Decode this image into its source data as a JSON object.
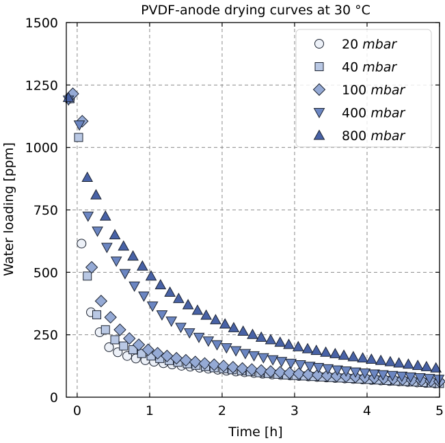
{
  "colors": {
    "20": "#edf1f8",
    "40": "#b9c8e4",
    "100": "#95aad5",
    "400": "#6b86c2",
    "800": "#4862a6",
    "edge": "#1b2230",
    "grid": "#8a8a8a"
  },
  "chart_data": {
    "type": "scatter",
    "title": "PVDF-anode drying curves at 30 °C",
    "xlabel": "Time [h]",
    "ylabel": "Water loading [ppm]",
    "xlim": [
      -0.15,
      5
    ],
    "ylim": [
      0,
      1500
    ],
    "xticks": [
      0,
      1,
      2,
      3,
      4,
      5
    ],
    "yticks": [
      0,
      250,
      500,
      750,
      1000,
      1250,
      1500
    ],
    "xtick_labels": [
      "0",
      "1",
      "2",
      "3",
      "4",
      "5"
    ],
    "ytick_labels": [
      "0",
      "250",
      "500",
      "750",
      "1000",
      "1250",
      "1500"
    ],
    "grid": true,
    "legend_position": "top-right",
    "series": [
      {
        "name": "20 mbar",
        "num": "20",
        "unit": "mbar",
        "marker": "circle",
        "color": "#edf1f8",
        "x": [
          -0.1,
          0.06,
          0.19,
          0.31,
          0.44,
          0.56,
          0.69,
          0.81,
          0.94,
          1.06,
          1.19,
          1.31,
          1.44,
          1.56,
          1.69,
          1.81,
          1.94,
          2.06,
          2.19,
          2.31,
          2.44,
          2.56,
          2.69,
          2.81,
          2.94,
          3.06,
          3.19,
          3.31,
          3.44,
          3.56,
          3.69,
          3.81,
          3.94,
          4.06,
          4.19,
          4.31,
          4.44,
          4.56,
          4.69,
          4.81,
          4.94
        ],
        "y": [
          1195,
          615,
          340,
          260,
          200,
          180,
          165,
          155,
          148,
          142,
          136,
          131,
          126,
          122,
          118,
          114,
          110,
          106,
          103,
          100,
          97,
          94,
          91,
          89,
          87,
          85,
          83,
          81,
          79,
          77,
          75,
          73,
          71,
          69,
          67,
          65,
          63,
          61,
          59,
          57,
          55
        ]
      },
      {
        "name": "40 mbar",
        "num": "40",
        "unit": "mbar",
        "marker": "square",
        "color": "#b9c8e4",
        "x": [
          -0.1,
          0.02,
          0.14,
          0.27,
          0.39,
          0.52,
          0.64,
          0.77,
          0.89,
          1.02,
          1.14,
          1.27,
          1.39,
          1.52,
          1.64,
          1.77,
          1.89,
          2.02,
          2.14,
          2.27,
          2.39,
          2.52,
          2.64,
          2.77,
          2.89,
          3.02,
          3.14,
          3.27,
          3.39,
          3.52,
          3.64,
          3.77,
          3.89,
          4.02,
          4.14,
          4.27,
          4.39,
          4.52,
          4.64,
          4.77,
          4.89,
          5.0
        ],
        "y": [
          1195,
          1040,
          485,
          330,
          270,
          230,
          205,
          190,
          175,
          165,
          155,
          147,
          140,
          134,
          128,
          123,
          118,
          114,
          110,
          106,
          102,
          98,
          95,
          92,
          89,
          87,
          85,
          83,
          81,
          79,
          77,
          75,
          73,
          71,
          69,
          67,
          65,
          63,
          61,
          59,
          57,
          55
        ]
      },
      {
        "name": "100 mbar",
        "num": "100",
        "unit": "mbar",
        "marker": "diamond",
        "color": "#95aad5",
        "x": [
          -0.06,
          0.07,
          0.2,
          0.33,
          0.46,
          0.59,
          0.72,
          0.85,
          0.98,
          1.11,
          1.24,
          1.37,
          1.5,
          1.63,
          1.76,
          1.89,
          2.02,
          2.15,
          2.28,
          2.41,
          2.54,
          2.67,
          2.8,
          2.93,
          3.06,
          3.19,
          3.32,
          3.45,
          3.58,
          3.71,
          3.84,
          3.97,
          4.1,
          4.23,
          4.36,
          4.49,
          4.62,
          4.75,
          4.88,
          5.0
        ],
        "y": [
          1215,
          1105,
          520,
          385,
          320,
          270,
          235,
          210,
          190,
          176,
          165,
          156,
          148,
          141,
          135,
          130,
          125,
          120,
          115,
          111,
          107,
          103,
          100,
          97,
          94,
          91,
          89,
          87,
          85,
          83,
          81,
          79,
          77,
          75,
          73,
          71,
          69,
          67,
          65,
          63
        ]
      },
      {
        "name": "400 mbar",
        "num": "400",
        "unit": "mbar",
        "marker": "triangle-down",
        "color": "#6b86c2",
        "x": [
          -0.12,
          0.03,
          0.15,
          0.28,
          0.41,
          0.54,
          0.66,
          0.79,
          0.92,
          1.04,
          1.17,
          1.3,
          1.43,
          1.55,
          1.68,
          1.81,
          1.93,
          2.06,
          2.19,
          2.32,
          2.44,
          2.57,
          2.7,
          2.82,
          2.95,
          3.08,
          3.21,
          3.33,
          3.46,
          3.59,
          3.71,
          3.84,
          3.97,
          4.1,
          4.22,
          4.35,
          4.48,
          4.6,
          4.73,
          4.86,
          4.99
        ],
        "y": [
          1190,
          1090,
          725,
          665,
          600,
          545,
          495,
          445,
          405,
          365,
          330,
          305,
          280,
          258,
          240,
          225,
          210,
          198,
          186,
          175,
          166,
          158,
          150,
          143,
          136,
          130,
          124,
          119,
          114,
          109,
          105,
          101,
          97,
          93,
          90,
          87,
          84,
          81,
          78,
          75,
          72
        ]
      },
      {
        "name": "800 mbar",
        "num": "800",
        "unit": "mbar",
        "marker": "triangle-up",
        "color": "#4862a6",
        "x": [
          -0.12,
          0.14,
          0.26,
          0.39,
          0.52,
          0.64,
          0.77,
          0.9,
          1.02,
          1.15,
          1.28,
          1.4,
          1.53,
          1.66,
          1.78,
          1.91,
          2.04,
          2.16,
          2.29,
          2.42,
          2.54,
          2.67,
          2.8,
          2.92,
          3.05,
          3.18,
          3.3,
          3.43,
          3.56,
          3.68,
          3.81,
          3.94,
          4.06,
          4.19,
          4.32,
          4.44,
          4.57,
          4.7,
          4.82,
          4.95
        ],
        "y": [
          1200,
          880,
          810,
          725,
          650,
          605,
          565,
          525,
          485,
          450,
          420,
          395,
          370,
          348,
          328,
          310,
          293,
          278,
          264,
          251,
          240,
          230,
          220,
          211,
          202,
          194,
          187,
          180,
          174,
          168,
          162,
          157,
          152,
          147,
          142,
          137,
          132,
          127,
          122,
          117
        ]
      }
    ]
  }
}
